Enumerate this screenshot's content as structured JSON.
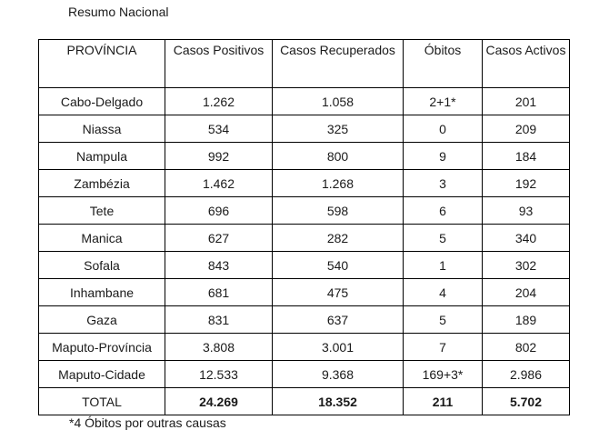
{
  "caption": "Resumo Nacional",
  "table": {
    "headers": [
      "PROVÍNCIA",
      "Casos Positivos",
      "Casos Recuperados",
      "Óbitos",
      "Casos Activos"
    ],
    "rows": [
      [
        "Cabo-Delgado",
        "1.262",
        "1.058",
        "2+1*",
        "201"
      ],
      [
        "Niassa",
        "534",
        "325",
        "0",
        "209"
      ],
      [
        "Nampula",
        "992",
        "800",
        "9",
        "184"
      ],
      [
        "Zambézia",
        "1.462",
        "1.268",
        "3",
        "192"
      ],
      [
        "Tete",
        "696",
        "598",
        "6",
        "93"
      ],
      [
        "Manica",
        "627",
        "282",
        "5",
        "340"
      ],
      [
        "Sofala",
        "843",
        "540",
        "1",
        "302"
      ],
      [
        "Inhambane",
        "681",
        "475",
        "4",
        "204"
      ],
      [
        "Gaza",
        "831",
        "637",
        "5",
        "189"
      ],
      [
        "Maputo-Província",
        "3.808",
        "3.001",
        "7",
        "802"
      ],
      [
        "Maputo-Cidade",
        "12.533",
        "9.368",
        "169+3*",
        "2.986"
      ]
    ],
    "total": [
      "TOTAL",
      "24.269",
      "18.352",
      "211",
      "5.702"
    ]
  },
  "footnote": "*4 Óbitos por outras causas"
}
